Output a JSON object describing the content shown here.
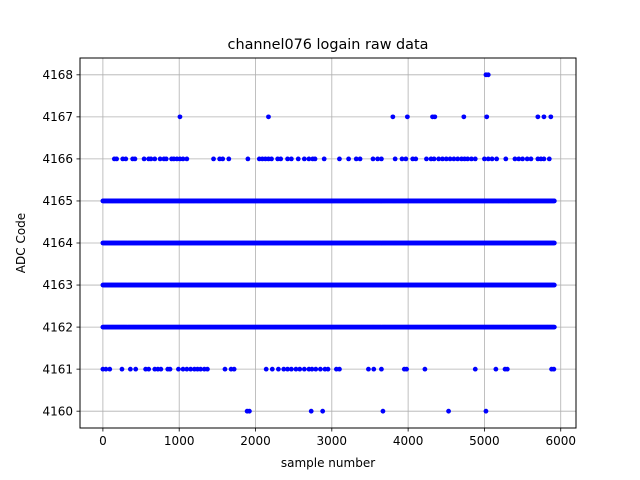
{
  "chart_data": {
    "type": "scatter",
    "title": "channel076 logain raw data",
    "xlabel": "sample number",
    "ylabel": "ADC Code",
    "xlim": [
      -300,
      6200
    ],
    "ylim": [
      4159.6,
      4168.4
    ],
    "xticks": [
      0,
      1000,
      2000,
      3000,
      4000,
      5000,
      6000
    ],
    "xtick_labels": [
      "0",
      "1000",
      "2000",
      "3000",
      "4000",
      "5000",
      "6000"
    ],
    "yticks": [
      4160,
      4161,
      4162,
      4163,
      4164,
      4165,
      4166,
      4167,
      4168
    ],
    "ytick_labels": [
      "4160",
      "4161",
      "4162",
      "4163",
      "4164",
      "4165",
      "4166",
      "4167",
      "4168"
    ],
    "grid": true,
    "marker_color": "#0000ff",
    "series": [
      {
        "points": [
          [
            1890,
            4160
          ],
          [
            1920,
            4160
          ],
          [
            2730,
            4160
          ],
          [
            2880,
            4160
          ],
          [
            3670,
            4160
          ],
          [
            4530,
            4160
          ],
          [
            5020,
            4160
          ],
          [
            0,
            4161
          ],
          [
            40,
            4161
          ],
          [
            90,
            4161
          ],
          [
            250,
            4161
          ],
          [
            360,
            4161
          ],
          [
            430,
            4161
          ],
          [
            560,
            4161
          ],
          [
            600,
            4161
          ],
          [
            680,
            4161
          ],
          [
            720,
            4161
          ],
          [
            760,
            4161
          ],
          [
            850,
            4161
          ],
          [
            880,
            4161
          ],
          [
            990,
            4161
          ],
          [
            1050,
            4161
          ],
          [
            1100,
            4161
          ],
          [
            1150,
            4161
          ],
          [
            1200,
            4161
          ],
          [
            1240,
            4161
          ],
          [
            1280,
            4161
          ],
          [
            1330,
            4161
          ],
          [
            1370,
            4161
          ],
          [
            1600,
            4161
          ],
          [
            1680,
            4161
          ],
          [
            1720,
            4161
          ],
          [
            2140,
            4161
          ],
          [
            2220,
            4161
          ],
          [
            2300,
            4161
          ],
          [
            2370,
            4161
          ],
          [
            2420,
            4161
          ],
          [
            2470,
            4161
          ],
          [
            2530,
            4161
          ],
          [
            2580,
            4161
          ],
          [
            2640,
            4161
          ],
          [
            2700,
            4161
          ],
          [
            2740,
            4161
          ],
          [
            2790,
            4161
          ],
          [
            2850,
            4161
          ],
          [
            2910,
            4161
          ],
          [
            2950,
            4161
          ],
          [
            3060,
            4161
          ],
          [
            3100,
            4161
          ],
          [
            3480,
            4161
          ],
          [
            3550,
            4161
          ],
          [
            3650,
            4161
          ],
          [
            3950,
            4161
          ],
          [
            3980,
            4161
          ],
          [
            4220,
            4161
          ],
          [
            4880,
            4161
          ],
          [
            5150,
            4161
          ],
          [
            5270,
            4161
          ],
          [
            5300,
            4161
          ],
          [
            5880,
            4161
          ],
          [
            5910,
            4161
          ],
          [
            150,
            4166
          ],
          [
            180,
            4166
          ],
          [
            260,
            4166
          ],
          [
            300,
            4166
          ],
          [
            390,
            4166
          ],
          [
            420,
            4166
          ],
          [
            540,
            4166
          ],
          [
            600,
            4166
          ],
          [
            630,
            4166
          ],
          [
            680,
            4166
          ],
          [
            750,
            4166
          ],
          [
            800,
            4166
          ],
          [
            830,
            4166
          ],
          [
            900,
            4166
          ],
          [
            930,
            4166
          ],
          [
            970,
            4166
          ],
          [
            1010,
            4166
          ],
          [
            1050,
            4166
          ],
          [
            1100,
            4166
          ],
          [
            1450,
            4166
          ],
          [
            1530,
            4166
          ],
          [
            1570,
            4166
          ],
          [
            1650,
            4166
          ],
          [
            1900,
            4166
          ],
          [
            2050,
            4166
          ],
          [
            2090,
            4166
          ],
          [
            2130,
            4166
          ],
          [
            2170,
            4166
          ],
          [
            2210,
            4166
          ],
          [
            2290,
            4166
          ],
          [
            2330,
            4166
          ],
          [
            2420,
            4166
          ],
          [
            2470,
            4166
          ],
          [
            2560,
            4166
          ],
          [
            2640,
            4166
          ],
          [
            2700,
            4166
          ],
          [
            2750,
            4166
          ],
          [
            2780,
            4166
          ],
          [
            2900,
            4166
          ],
          [
            3100,
            4166
          ],
          [
            3220,
            4166
          ],
          [
            3320,
            4166
          ],
          [
            3370,
            4166
          ],
          [
            3540,
            4166
          ],
          [
            3600,
            4166
          ],
          [
            3650,
            4166
          ],
          [
            3830,
            4166
          ],
          [
            3920,
            4166
          ],
          [
            3970,
            4166
          ],
          [
            4060,
            4166
          ],
          [
            4100,
            4166
          ],
          [
            4240,
            4166
          ],
          [
            4300,
            4166
          ],
          [
            4340,
            4166
          ],
          [
            4400,
            4166
          ],
          [
            4450,
            4166
          ],
          [
            4500,
            4166
          ],
          [
            4550,
            4166
          ],
          [
            4600,
            4166
          ],
          [
            4650,
            4166
          ],
          [
            4700,
            4166
          ],
          [
            4740,
            4166
          ],
          [
            4780,
            4166
          ],
          [
            4830,
            4166
          ],
          [
            4880,
            4166
          ],
          [
            5000,
            4166
          ],
          [
            5050,
            4166
          ],
          [
            5100,
            4166
          ],
          [
            5160,
            4166
          ],
          [
            5280,
            4166
          ],
          [
            5400,
            4166
          ],
          [
            5450,
            4166
          ],
          [
            5500,
            4166
          ],
          [
            5560,
            4166
          ],
          [
            5610,
            4166
          ],
          [
            5700,
            4166
          ],
          [
            5740,
            4166
          ],
          [
            5780,
            4166
          ],
          [
            5850,
            4166
          ],
          [
            1010,
            4167
          ],
          [
            2170,
            4167
          ],
          [
            3800,
            4167
          ],
          [
            3990,
            4167
          ],
          [
            4320,
            4167
          ],
          [
            4350,
            4167
          ],
          [
            4730,
            4167
          ],
          [
            5030,
            4167
          ],
          [
            5700,
            4167
          ],
          [
            5780,
            4167
          ],
          [
            5870,
            4167
          ],
          [
            5020,
            4168
          ],
          [
            5050,
            4168
          ]
        ],
        "dense_rows": [
          {
            "y": 4162,
            "x_from": 0,
            "x_to": 5920
          },
          {
            "y": 4163,
            "x_from": 0,
            "x_to": 5920
          },
          {
            "y": 4164,
            "x_from": 0,
            "x_to": 5920
          },
          {
            "y": 4165,
            "x_from": 0,
            "x_to": 5920
          }
        ]
      }
    ]
  }
}
